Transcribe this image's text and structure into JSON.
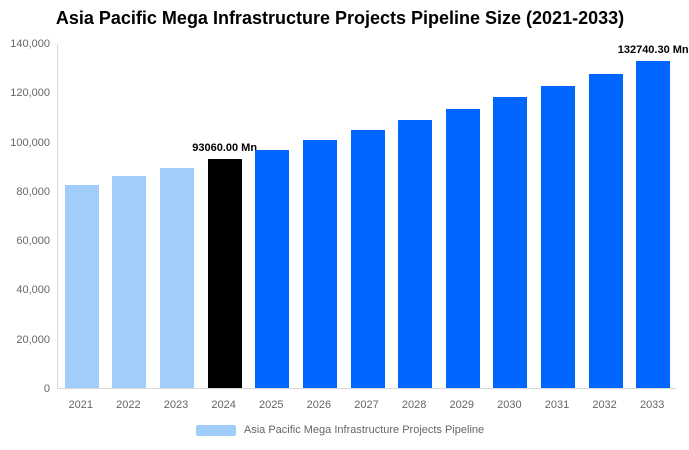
{
  "title": "Asia Pacific Mega Infrastructure Projects Pipeline Size (2021-2033)",
  "colors": {
    "light_blue": "#A1CDFA",
    "primary_blue": "#0066FF",
    "highlight_black": "#000000",
    "axis_text": "#666666",
    "axis_line": "#D9D9D9",
    "title_text": "#000000",
    "point_label_text": "#000000"
  },
  "legend": {
    "label": "Asia Pacific Mega Infrastructure Projects Pipeline",
    "swatch_color_key": "light_blue"
  },
  "chart_data": {
    "type": "bar",
    "title": "Asia Pacific Mega Infrastructure Projects Pipeline Size (2021-2033)",
    "categories": [
      "2021",
      "2022",
      "2023",
      "2024",
      "2025",
      "2026",
      "2027",
      "2028",
      "2029",
      "2030",
      "2031",
      "2032",
      "2033"
    ],
    "values": [
      82400,
      85900,
      89150,
      93060,
      96600,
      100500,
      104600,
      108900,
      113350,
      118100,
      122700,
      127450,
      132740.3
    ],
    "bar_color_keys": [
      "light_blue",
      "light_blue",
      "light_blue",
      "highlight_black",
      "primary_blue",
      "primary_blue",
      "primary_blue",
      "primary_blue",
      "primary_blue",
      "primary_blue",
      "primary_blue",
      "primary_blue",
      "primary_blue"
    ],
    "point_labels": {
      "2024": "93060.00 Mn",
      "2033": "132740.30 Mn"
    },
    "xlabel": "",
    "ylabel": "",
    "ylim": [
      0,
      140000
    ],
    "ytick_values": [
      0,
      20000,
      40000,
      60000,
      80000,
      100000,
      120000,
      140000
    ],
    "ytick_labels": [
      "0",
      "20,000",
      "40,000",
      "60,000",
      "80,000",
      "100,000",
      "120,000",
      "140,000"
    ],
    "grid": false,
    "legend_position": "bottom",
    "legend_entries": [
      "Asia Pacific Mega Infrastructure Projects Pipeline"
    ]
  }
}
